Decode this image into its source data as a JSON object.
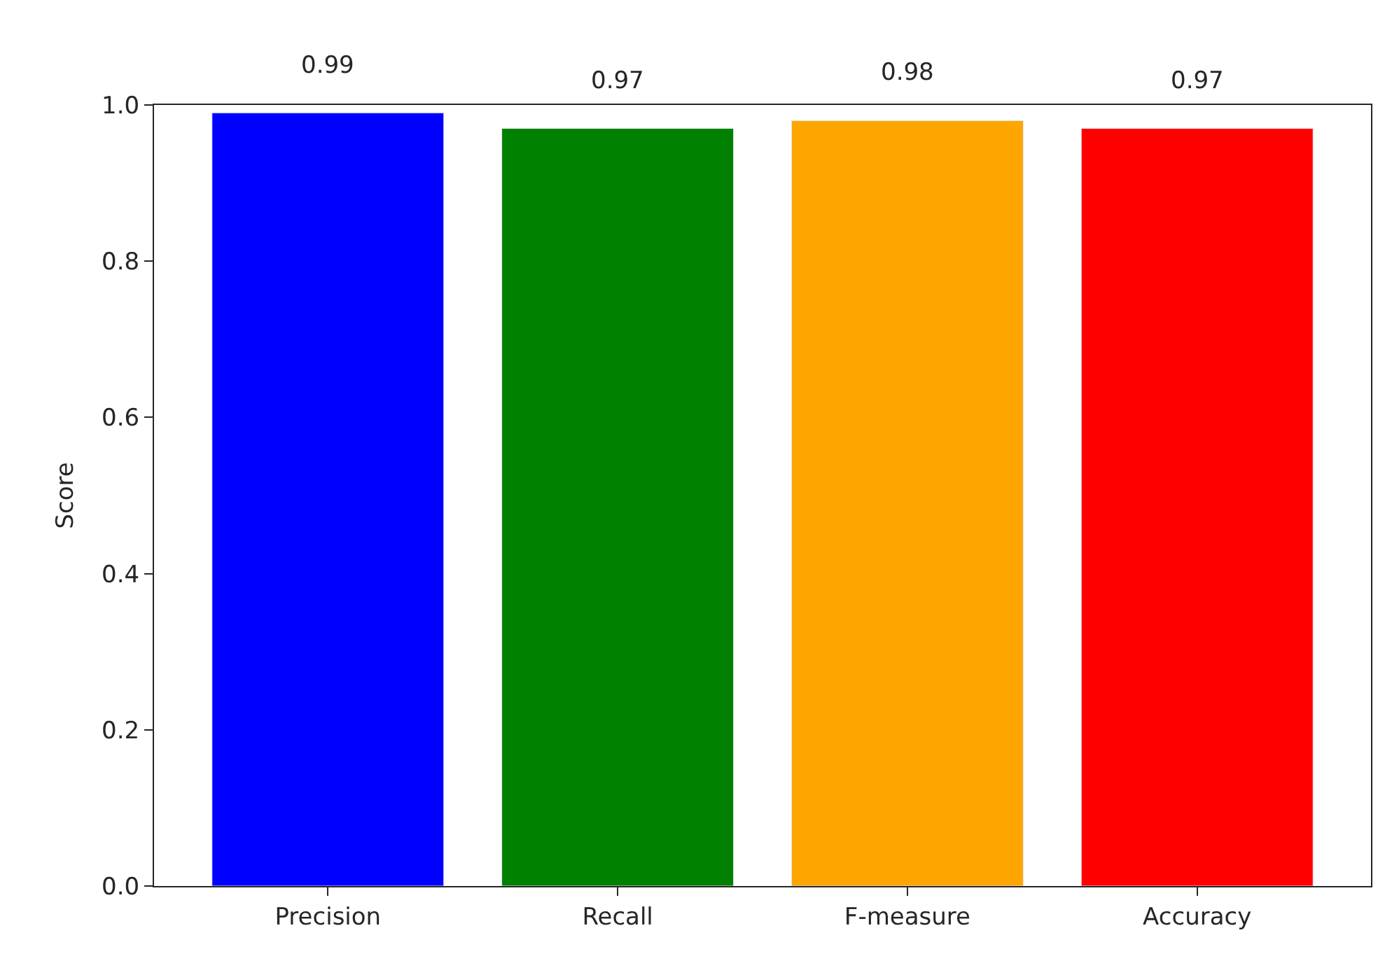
{
  "chart_data": {
    "type": "bar",
    "ylabel": "Score",
    "categories": [
      "Precision",
      "Recall",
      "F-measure",
      "Accuracy"
    ],
    "values": [
      0.99,
      0.97,
      0.98,
      0.97
    ],
    "colors": [
      "#0000ff",
      "#008000",
      "#ffa500",
      "#ff0000"
    ],
    "ylim": [
      0,
      1
    ],
    "yticks": [
      {
        "value": 0,
        "label": "0.0"
      },
      0.2,
      0.4,
      0.6,
      0.8,
      {
        "value": 1,
        "label": "1.0"
      }
    ],
    "data_labels": true
  }
}
